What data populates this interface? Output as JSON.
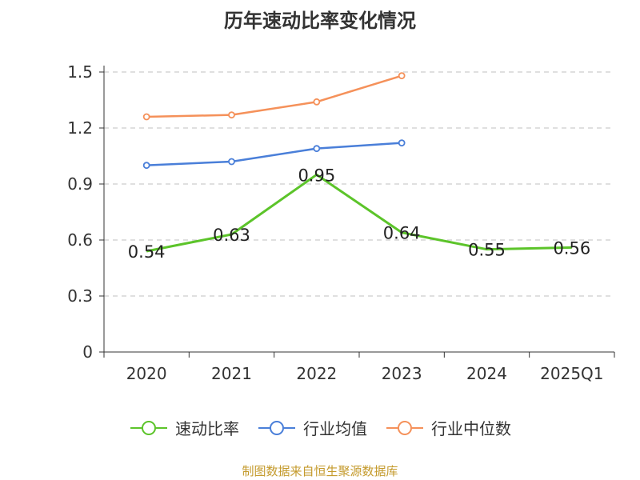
{
  "chart_data": {
    "type": "line",
    "title": "历年速动比率变化情况",
    "categories": [
      "2020",
      "2021",
      "2022",
      "2023",
      "2024",
      "2025Q1"
    ],
    "ylim": [
      0,
      1.5
    ],
    "yticks": [
      "0",
      "0.3",
      "0.6",
      "0.9",
      "1.2",
      "1.5"
    ],
    "ytick_values": [
      0,
      0.3,
      0.6,
      0.9,
      1.2,
      1.5
    ],
    "grid": true,
    "legend_position": "bottom",
    "series": [
      {
        "name": "速动比率",
        "color": "#5cc42a",
        "values": [
          0.54,
          0.63,
          0.95,
          0.64,
          0.55,
          0.56
        ],
        "labels": [
          "0.54",
          "0.63",
          "0.95",
          "0.64",
          "0.55",
          "0.56"
        ],
        "show_labels": true,
        "markers": false
      },
      {
        "name": "行业均值",
        "color": "#4a7fd9",
        "values": [
          1.0,
          1.02,
          1.09,
          1.12,
          null,
          null
        ],
        "show_labels": false,
        "markers": true
      },
      {
        "name": "行业中位数",
        "color": "#f5915a",
        "values": [
          1.26,
          1.27,
          1.34,
          1.48,
          null,
          null
        ],
        "show_labels": false,
        "markers": true
      }
    ]
  },
  "source": "制图数据来自恒生聚源数据库"
}
